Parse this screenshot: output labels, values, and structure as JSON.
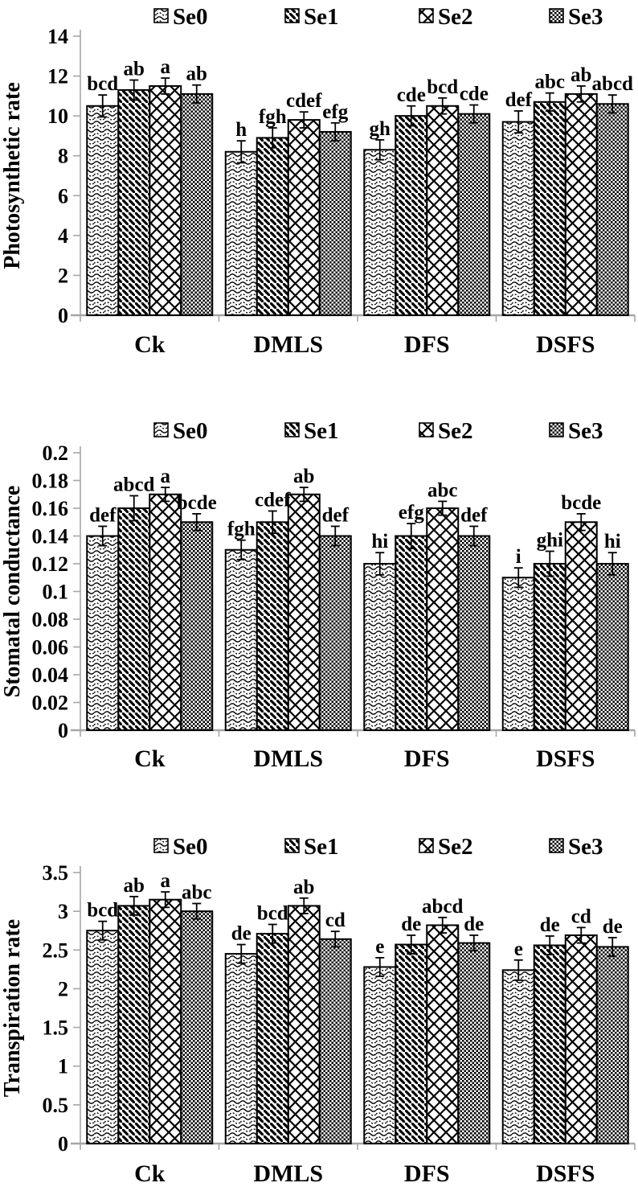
{
  "colors": {
    "background": "#ffffff",
    "bar_pattern": "#000000",
    "bar_border": "#000000",
    "axis": "#a6a6a6",
    "text": "#000000"
  },
  "legend": {
    "position": "top",
    "items": [
      {
        "label": "Se0",
        "pattern": "wave"
      },
      {
        "label": "Se1",
        "pattern": "diagonal-stripes"
      },
      {
        "label": "Se2",
        "pattern": "diamond-lattice"
      },
      {
        "label": "Se3",
        "pattern": "checkerboard"
      }
    ]
  },
  "chart_data": [
    {
      "type": "bar",
      "title": "",
      "xlabel": "",
      "ylabel": "Photosynthetic rate",
      "categories": [
        "Ck",
        "DMLS",
        "DFS",
        "DSFS"
      ],
      "ylim": [
        0,
        14
      ],
      "yticks": [
        0,
        2,
        4,
        6,
        8,
        10,
        12,
        14
      ],
      "ytick_labels": [
        "0",
        "2",
        "4",
        "6",
        "8",
        "10",
        "12",
        "14"
      ],
      "grid": false,
      "legend_position": "top",
      "series": [
        {
          "name": "Se0",
          "pattern": "wave",
          "values": [
            10.5,
            8.2,
            8.3,
            9.7
          ],
          "errors": [
            0.55,
            0.55,
            0.5,
            0.55
          ],
          "sig_letters": [
            "bcd",
            "h",
            "gh",
            "def"
          ]
        },
        {
          "name": "Se1",
          "pattern": "diagonal-stripes",
          "values": [
            11.3,
            8.9,
            10.0,
            10.7
          ],
          "errors": [
            0.5,
            0.5,
            0.5,
            0.45
          ],
          "sig_letters": [
            "ab",
            "fgh",
            "cde",
            "abc"
          ]
        },
        {
          "name": "Se2",
          "pattern": "diamond-lattice",
          "values": [
            11.5,
            9.8,
            10.5,
            11.1
          ],
          "errors": [
            0.4,
            0.4,
            0.4,
            0.4
          ],
          "sig_letters": [
            "a",
            "cdef",
            "bcd",
            "ab"
          ]
        },
        {
          "name": "Se3",
          "pattern": "checkerboard",
          "values": [
            11.1,
            9.2,
            10.1,
            10.6
          ],
          "errors": [
            0.45,
            0.45,
            0.45,
            0.45
          ],
          "sig_letters": [
            "ab",
            "efg",
            "cde",
            "abcd"
          ]
        }
      ]
    },
    {
      "type": "bar",
      "title": "",
      "xlabel": "",
      "ylabel": "Stomatal conductance",
      "categories": [
        "Ck",
        "DMLS",
        "DFS",
        "DSFS"
      ],
      "ylim": [
        0,
        0.2
      ],
      "yticks": [
        0,
        0.02,
        0.04,
        0.06,
        0.08,
        0.1,
        0.12,
        0.14,
        0.16,
        0.18,
        0.2
      ],
      "ytick_labels": [
        "0",
        "0.02",
        "0.04",
        "0.06",
        "0.08",
        "0.1",
        "0.12",
        "0.14",
        "0.16",
        "0.18",
        "0.2"
      ],
      "grid": false,
      "legend_position": "top",
      "series": [
        {
          "name": "Se0",
          "pattern": "wave",
          "values": [
            0.14,
            0.13,
            0.12,
            0.11
          ],
          "errors": [
            0.007,
            0.007,
            0.008,
            0.007
          ],
          "sig_letters": [
            "def",
            "fgh",
            "hi",
            "i"
          ]
        },
        {
          "name": "Se1",
          "pattern": "diagonal-stripes",
          "values": [
            0.16,
            0.15,
            0.14,
            0.12
          ],
          "errors": [
            0.009,
            0.008,
            0.009,
            0.009
          ],
          "sig_letters": [
            "abcd",
            "cdef",
            "efg",
            "ghi"
          ]
        },
        {
          "name": "Se2",
          "pattern": "diamond-lattice",
          "values": [
            0.17,
            0.17,
            0.16,
            0.15
          ],
          "errors": [
            0.005,
            0.005,
            0.005,
            0.006
          ],
          "sig_letters": [
            "a",
            "ab",
            "abc",
            "bcde"
          ]
        },
        {
          "name": "Se3",
          "pattern": "checkerboard",
          "values": [
            0.15,
            0.14,
            0.14,
            0.12
          ],
          "errors": [
            0.006,
            0.007,
            0.007,
            0.008
          ],
          "sig_letters": [
            "bcde",
            "def",
            "def",
            "hi"
          ]
        }
      ]
    },
    {
      "type": "bar",
      "title": "",
      "xlabel": "",
      "ylabel": "Transpiration rate",
      "categories": [
        "Ck",
        "DMLS",
        "DFS",
        "DSFS"
      ],
      "ylim": [
        0,
        3.5
      ],
      "yticks": [
        0,
        0.5,
        1,
        1.5,
        2,
        2.5,
        3,
        3.5
      ],
      "ytick_labels": [
        "0",
        "0.5",
        "1",
        "1.5",
        "2",
        "2.5",
        "3",
        "3.5"
      ],
      "grid": false,
      "legend_position": "top",
      "series": [
        {
          "name": "Se0",
          "pattern": "wave",
          "values": [
            2.75,
            2.45,
            2.28,
            2.24
          ],
          "errors": [
            0.12,
            0.12,
            0.12,
            0.13
          ],
          "sig_letters": [
            "bcd",
            "de",
            "e",
            "e"
          ]
        },
        {
          "name": "Se1",
          "pattern": "diagonal-stripes",
          "values": [
            3.07,
            2.71,
            2.57,
            2.56
          ],
          "errors": [
            0.12,
            0.12,
            0.12,
            0.12
          ],
          "sig_letters": [
            "ab",
            "bcd",
            "de",
            "de"
          ]
        },
        {
          "name": "Se2",
          "pattern": "diamond-lattice",
          "values": [
            3.15,
            3.07,
            2.82,
            2.69
          ],
          "errors": [
            0.1,
            0.1,
            0.1,
            0.1
          ],
          "sig_letters": [
            "a",
            "ab",
            "abcd",
            "cd"
          ]
        },
        {
          "name": "Se3",
          "pattern": "checkerboard",
          "values": [
            3.0,
            2.64,
            2.59,
            2.54
          ],
          "errors": [
            0.1,
            0.1,
            0.1,
            0.12
          ],
          "sig_letters": [
            "abc",
            "cd",
            "de",
            "de"
          ]
        }
      ]
    }
  ]
}
